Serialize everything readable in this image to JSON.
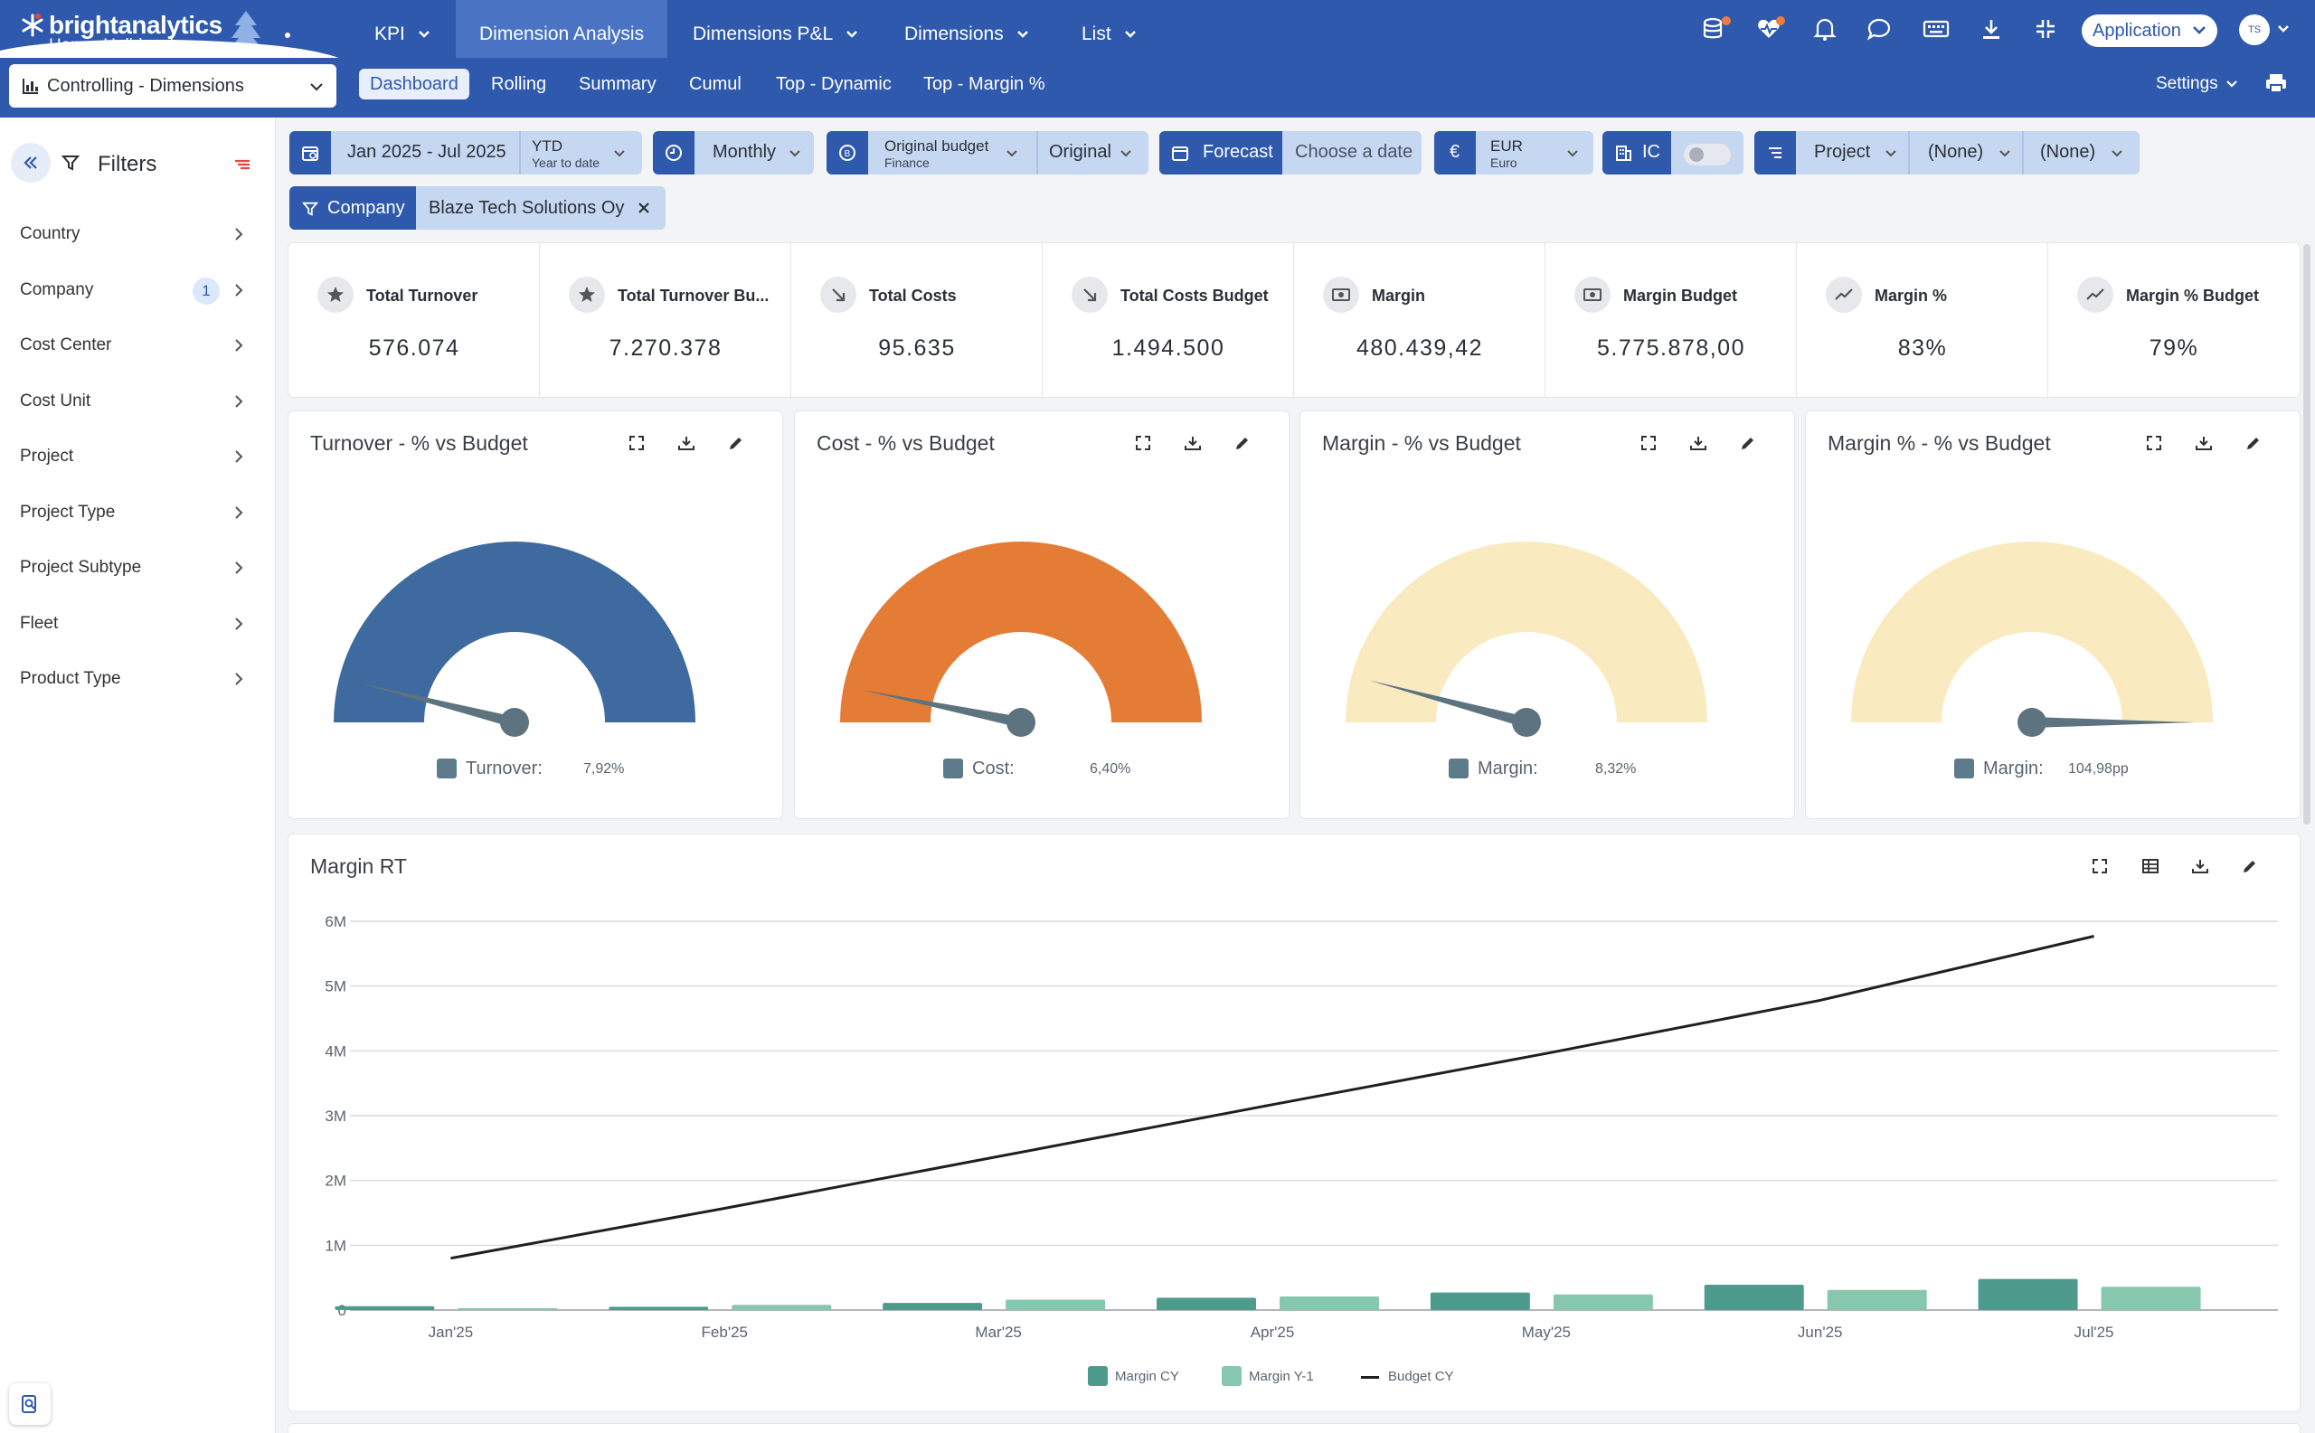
{
  "brand": {
    "name": "brightanalytics",
    "tagline": "Happy Holidays!"
  },
  "nav": {
    "tabs": [
      {
        "label": "KPI"
      },
      {
        "label": "Dimension Analysis"
      },
      {
        "label": "Dimensions P&L"
      },
      {
        "label": "Dimensions"
      },
      {
        "label": "List"
      }
    ],
    "app_label": "Application",
    "avatar_initials": "TS"
  },
  "subnav": {
    "dashboard_select": "Controlling - Dimensions",
    "tabs": [
      {
        "label": "Dashboard"
      },
      {
        "label": "Rolling"
      },
      {
        "label": "Summary"
      },
      {
        "label": "Cumul"
      },
      {
        "label": "Top - Dynamic"
      },
      {
        "label": "Top - Margin %"
      }
    ],
    "settings_label": "Settings"
  },
  "sidebar": {
    "title": "Filters",
    "items": [
      {
        "label": "Country",
        "count": ""
      },
      {
        "label": "Company",
        "count": "1"
      },
      {
        "label": "Cost Center",
        "count": ""
      },
      {
        "label": "Cost Unit",
        "count": ""
      },
      {
        "label": "Project",
        "count": ""
      },
      {
        "label": "Project Type",
        "count": ""
      },
      {
        "label": "Project Subtype",
        "count": ""
      },
      {
        "label": "Fleet",
        "count": ""
      },
      {
        "label": "Product Type",
        "count": ""
      }
    ]
  },
  "filterbar": {
    "date_range": "Jan 2025 - Jul 2025",
    "period_type": "YTD",
    "period_type_sub": "Year to date",
    "granularity": "Monthly",
    "budget": "Original budget",
    "budget_sub": "Finance",
    "budget_version": "Original",
    "forecast_label": "Forecast",
    "forecast_placeholder": "Choose a date",
    "currency_symbol": "€",
    "currency": "EUR",
    "currency_sub": "Euro",
    "ic_label": "IC",
    "dimension": "Project",
    "dim_value_1": "(None)",
    "dim_value_2": "(None)",
    "active_filter_label": "Company",
    "active_filter_value": "Blaze Tech Solutions Oy"
  },
  "kpis": [
    {
      "label": "Total Turnover",
      "value": "576.074",
      "icon": "star-icon"
    },
    {
      "label": "Total Turnover Bu...",
      "value": "7.270.378",
      "icon": "star-icon"
    },
    {
      "label": "Total Costs",
      "value": "95.635",
      "icon": "arrow-down-right-icon"
    },
    {
      "label": "Total Costs Budget",
      "value": "1.494.500",
      "icon": "arrow-down-right-icon"
    },
    {
      "label": "Margin",
      "value": "480.439,42",
      "icon": "money-icon"
    },
    {
      "label": "Margin Budget",
      "value": "5.775.878,00",
      "icon": "money-icon"
    },
    {
      "label": "Margin %",
      "value": "83%",
      "icon": "trend-up-icon"
    },
    {
      "label": "Margin % Budget",
      "value": "79%",
      "icon": "trend-up-icon"
    }
  ],
  "gauges": [
    {
      "title": "Turnover - % vs Budget",
      "legend": "Turnover:",
      "value_label": "7,92%",
      "value": 7.92,
      "max": 100,
      "color": "#3e6a9f"
    },
    {
      "title": "Cost - % vs Budget",
      "legend": "Cost:",
      "value_label": "6,40%",
      "value": 6.4,
      "max": 100,
      "color": "#e47c35"
    },
    {
      "title": "Margin - % vs Budget",
      "legend": "Margin:",
      "value_label": "8,32%",
      "value": 8.32,
      "max": 100,
      "color": "#f9eac0"
    },
    {
      "title": "Margin % - % vs Budget",
      "legend": "Margin:",
      "value_label": "104,98pp",
      "value": 104.98,
      "max": 100,
      "color": "#f9eac0"
    }
  ],
  "chart_data": {
    "type": "bar",
    "title": "Margin RT",
    "categories": [
      "Jan'25",
      "Feb'25",
      "Mar'25",
      "Apr'25",
      "May'25",
      "Jun'25",
      "Jul'25"
    ],
    "y_ticks": [
      "0",
      "1M",
      "2M",
      "3M",
      "4M",
      "5M",
      "6M"
    ],
    "ylim": [
      0,
      6000000
    ],
    "grid": true,
    "legend_position": "bottom",
    "series": [
      {
        "name": "Margin CY",
        "kind": "bar",
        "color": "#4e9a8c",
        "values": [
          60000,
          50000,
          110000,
          190000,
          270000,
          390000,
          480000
        ]
      },
      {
        "name": "Margin Y-1",
        "kind": "bar",
        "color": "#86c7ad",
        "values": [
          30000,
          80000,
          160000,
          210000,
          240000,
          310000,
          360000
        ]
      },
      {
        "name": "Budget CY",
        "kind": "line",
        "color": "#1f1f1f",
        "values": [
          800000,
          1570000,
          2370000,
          3170000,
          3960000,
          4780000,
          5770000
        ]
      }
    ]
  }
}
